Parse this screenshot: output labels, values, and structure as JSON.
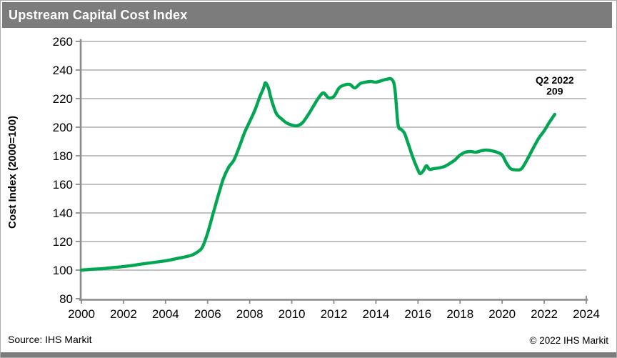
{
  "header": {
    "title": "Upstream Capital Cost Index"
  },
  "footer": {
    "source": "Source: IHS Markit",
    "copyright": "© 2022 IHS Markit"
  },
  "colors": {
    "line": "#00A651",
    "grid": "#9e9e9e",
    "axis": "#8a8a8a",
    "titlebar_bg": "#7c7c7c",
    "titlebar_text": "#ffffff",
    "label_text": "#000000"
  },
  "chart_data": {
    "type": "line",
    "title": "Upstream Capital Cost Index",
    "xlabel": "",
    "ylabel": "Cost Index (2000=100)",
    "xlim": [
      2000,
      2024
    ],
    "ylim": [
      80,
      260
    ],
    "x_ticks": [
      2000,
      2002,
      2004,
      2006,
      2008,
      2010,
      2012,
      2014,
      2016,
      2018,
      2020,
      2022,
      2024
    ],
    "y_ticks": [
      80,
      100,
      120,
      140,
      160,
      180,
      200,
      220,
      240,
      260
    ],
    "grid": "horizontal",
    "legend": "none",
    "annotation": {
      "lines": [
        "Q2 2022",
        "209"
      ]
    },
    "series": [
      {
        "name": "Upstream Capital Cost Index",
        "points": [
          [
            2000,
            100
          ],
          [
            2000.25,
            100.3
          ],
          [
            2000.5,
            100.6
          ],
          [
            2000.75,
            100.8
          ],
          [
            2001,
            101
          ],
          [
            2001.25,
            101.4
          ],
          [
            2001.5,
            101.8
          ],
          [
            2001.75,
            102.1
          ],
          [
            2002,
            102.5
          ],
          [
            2002.25,
            102.9
          ],
          [
            2002.5,
            103.4
          ],
          [
            2002.75,
            104
          ],
          [
            2003,
            104.5
          ],
          [
            2003.25,
            105
          ],
          [
            2003.5,
            105.5
          ],
          [
            2003.75,
            106
          ],
          [
            2004,
            106.5
          ],
          [
            2004.25,
            107.2
          ],
          [
            2004.5,
            108
          ],
          [
            2004.75,
            108.7
          ],
          [
            2005,
            109.5
          ],
          [
            2005.25,
            110.5
          ],
          [
            2005.5,
            112.5
          ],
          [
            2005.75,
            116
          ],
          [
            2006,
            126
          ],
          [
            2006.25,
            139
          ],
          [
            2006.5,
            152
          ],
          [
            2006.75,
            164
          ],
          [
            2007,
            172
          ],
          [
            2007.25,
            177
          ],
          [
            2007.5,
            186
          ],
          [
            2007.75,
            196
          ],
          [
            2008,
            204
          ],
          [
            2008.25,
            212
          ],
          [
            2008.5,
            222
          ],
          [
            2008.65,
            227
          ],
          [
            2008.75,
            231
          ],
          [
            2008.9,
            227
          ],
          [
            2009,
            221
          ],
          [
            2009.25,
            210
          ],
          [
            2009.5,
            206
          ],
          [
            2009.75,
            203
          ],
          [
            2010,
            201.5
          ],
          [
            2010.25,
            201
          ],
          [
            2010.5,
            203
          ],
          [
            2010.75,
            208
          ],
          [
            2011,
            214
          ],
          [
            2011.25,
            220
          ],
          [
            2011.5,
            224
          ],
          [
            2011.75,
            220.5
          ],
          [
            2012,
            221.5
          ],
          [
            2012.25,
            227.5
          ],
          [
            2012.5,
            229.5
          ],
          [
            2012.75,
            230
          ],
          [
            2013,
            227.5
          ],
          [
            2013.25,
            230.5
          ],
          [
            2013.5,
            231.5
          ],
          [
            2013.75,
            232
          ],
          [
            2014,
            231.5
          ],
          [
            2014.25,
            232.5
          ],
          [
            2014.5,
            233.5
          ],
          [
            2014.75,
            233.5
          ],
          [
            2014.9,
            227
          ],
          [
            2015.05,
            202
          ],
          [
            2015.2,
            198.5
          ],
          [
            2015.35,
            196
          ],
          [
            2015.5,
            190
          ],
          [
            2015.75,
            179
          ],
          [
            2016,
            170
          ],
          [
            2016.1,
            167.5
          ],
          [
            2016.25,
            169.5
          ],
          [
            2016.4,
            173
          ],
          [
            2016.55,
            170.5
          ],
          [
            2016.75,
            171
          ],
          [
            2017,
            171.5
          ],
          [
            2017.25,
            172.5
          ],
          [
            2017.5,
            174.5
          ],
          [
            2017.75,
            177
          ],
          [
            2018,
            180.5
          ],
          [
            2018.25,
            182.5
          ],
          [
            2018.5,
            183
          ],
          [
            2018.75,
            182.5
          ],
          [
            2019,
            183.5
          ],
          [
            2019.25,
            184
          ],
          [
            2019.5,
            183.5
          ],
          [
            2019.75,
            182.5
          ],
          [
            2020,
            180.5
          ],
          [
            2020.2,
            175
          ],
          [
            2020.4,
            171
          ],
          [
            2020.6,
            170.2
          ],
          [
            2020.85,
            170.3
          ],
          [
            2021,
            172.5
          ],
          [
            2021.25,
            179
          ],
          [
            2021.5,
            186
          ],
          [
            2021.75,
            192.5
          ],
          [
            2022,
            197.5
          ],
          [
            2022.25,
            203.5
          ],
          [
            2022.5,
            209
          ]
        ]
      }
    ]
  }
}
